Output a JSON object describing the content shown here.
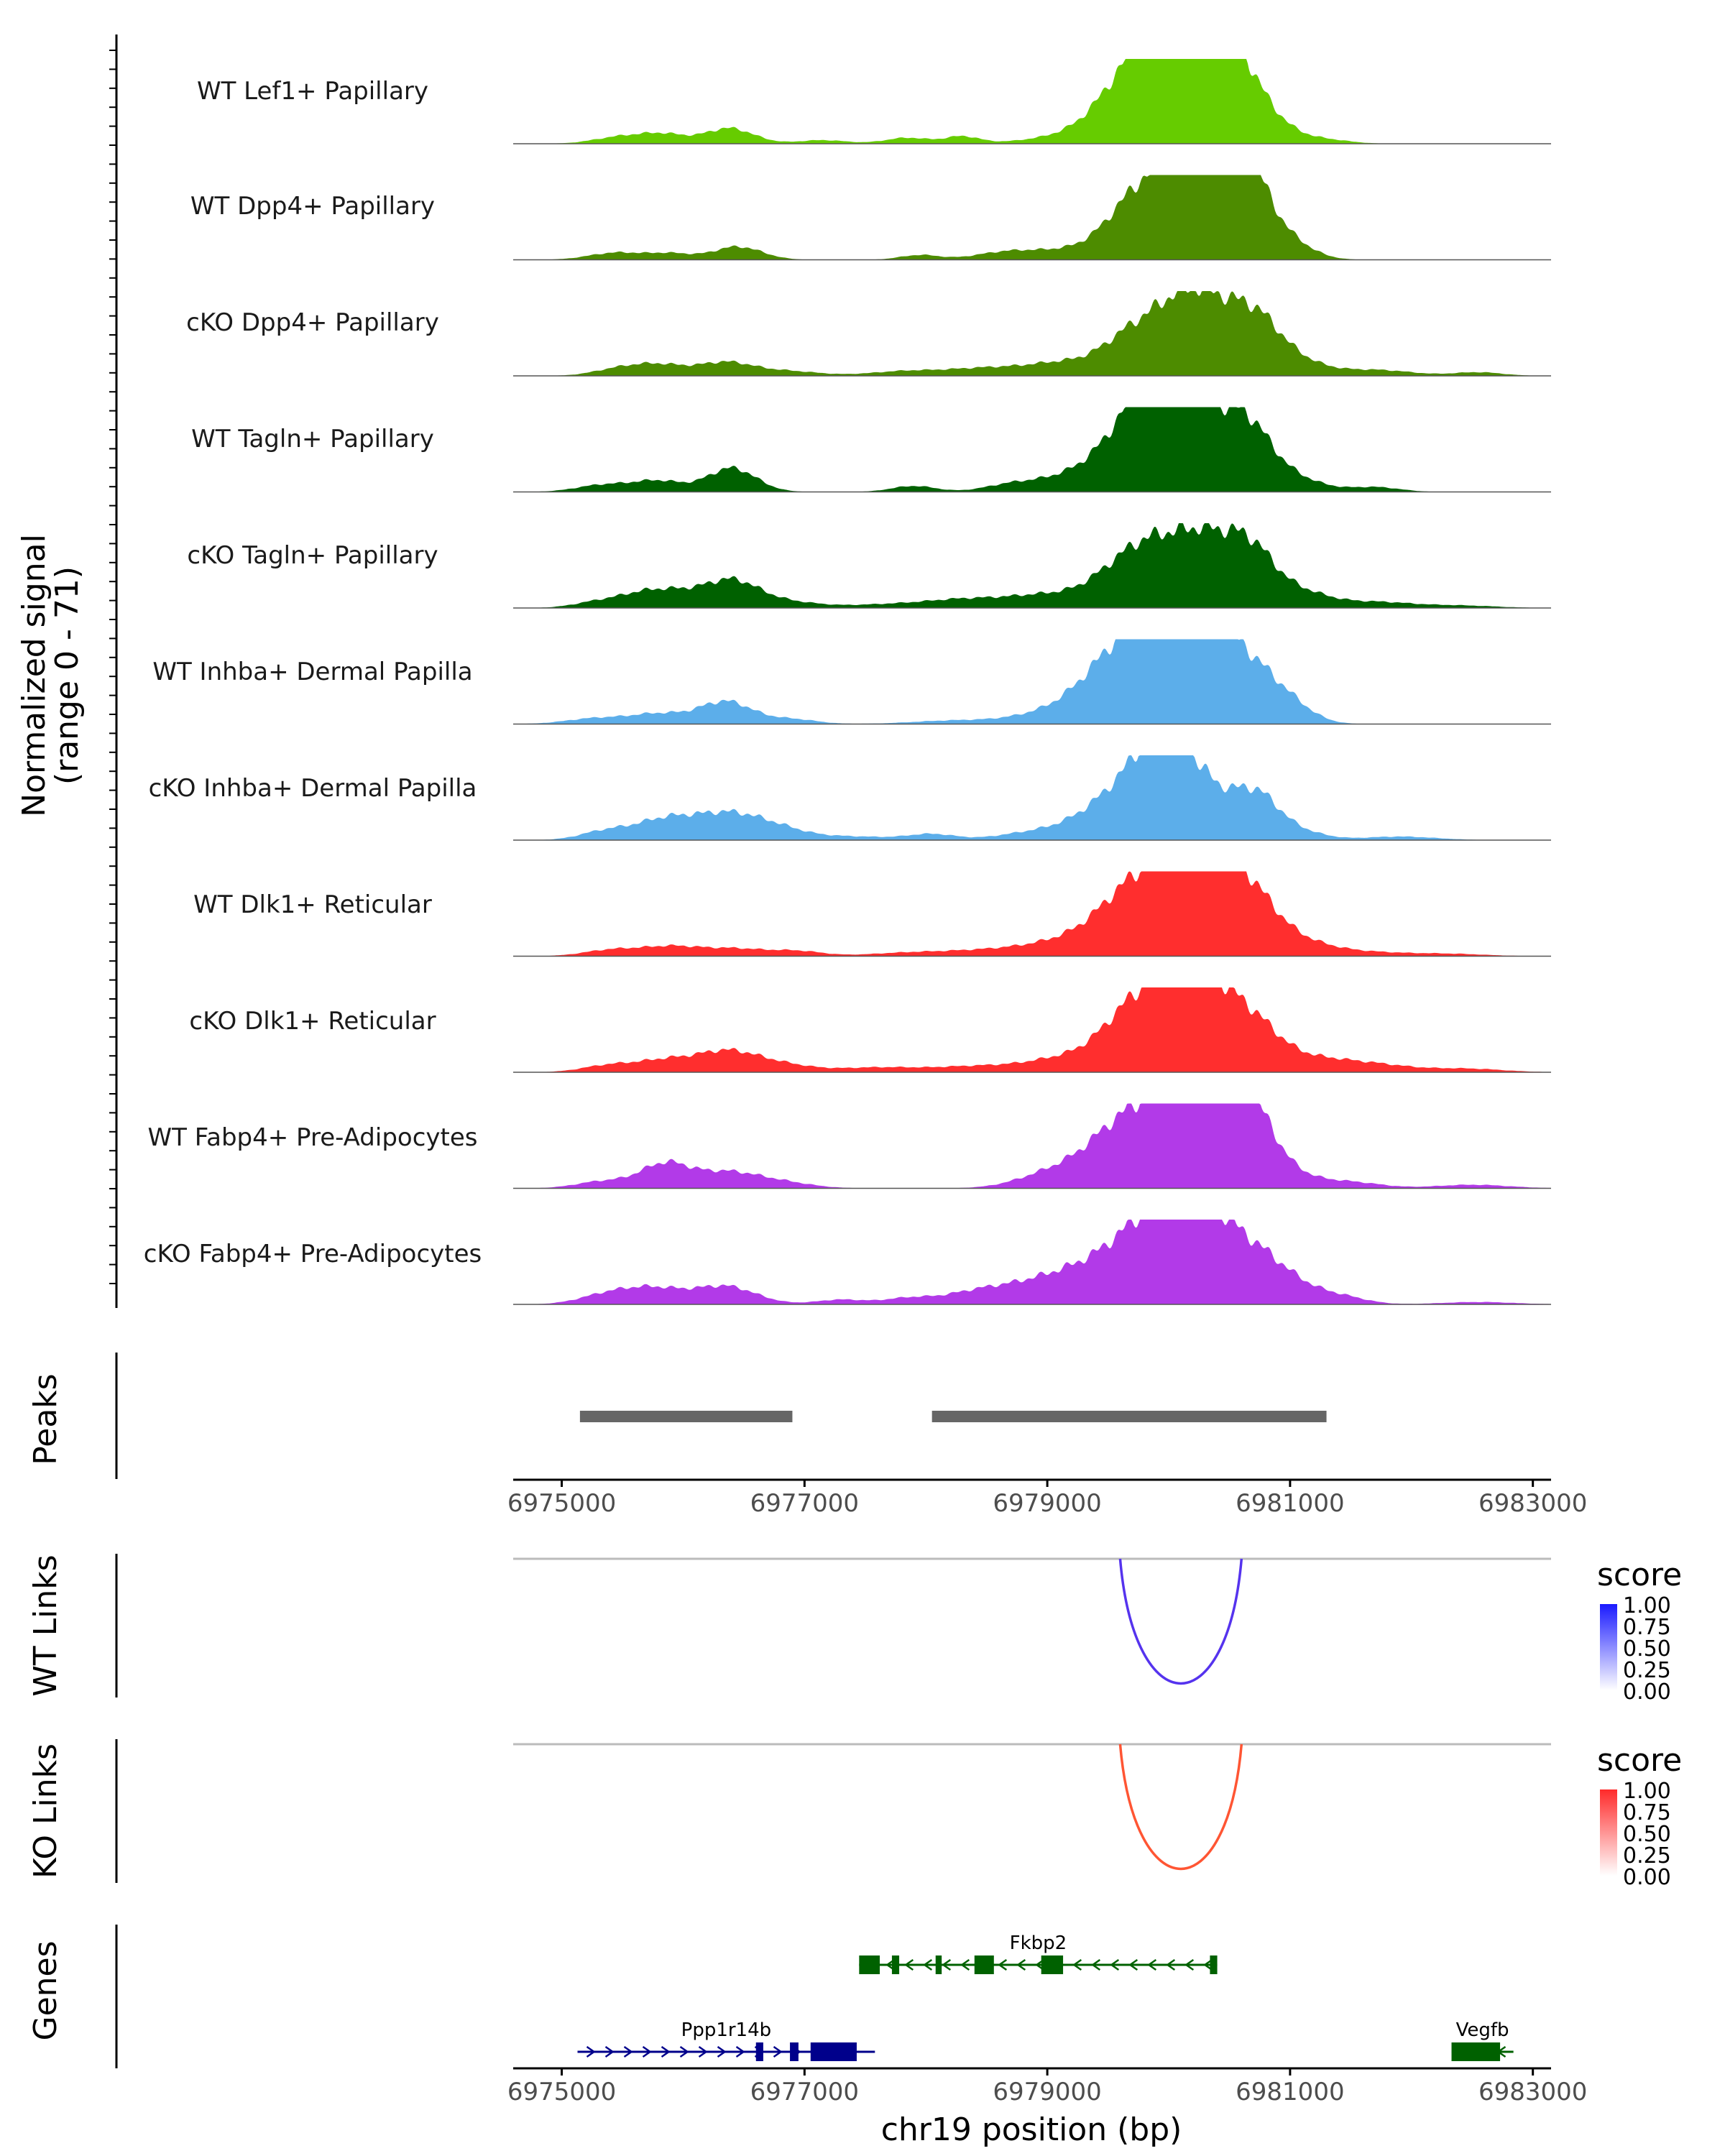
{
  "chart_data": {
    "type": "area",
    "title": "",
    "region": {
      "chrom": "chr19",
      "start": 6974600,
      "end": 6983150
    },
    "xlabel": "chr19 position (bp)",
    "x_ticks": [
      6975000,
      6977000,
      6979000,
      6981000,
      6983000
    ],
    "x_tick_labels": [
      "6975000",
      "6977000",
      "6979000",
      "6981000",
      "6983000"
    ],
    "signal_axis": {
      "label_line1": "Normalized signal",
      "label_line2": "(range 0 - 71)",
      "ylim": [
        0,
        71
      ]
    },
    "tracks": [
      {
        "name": "WT Lef1+ Papillary",
        "color": "#66cc00",
        "peaks": [
          [
            6975500,
            6,
            220
          ],
          [
            6975850,
            7,
            180
          ],
          [
            6976380,
            13,
            200
          ],
          [
            6977150,
            3,
            200
          ],
          [
            6977850,
            5,
            180
          ],
          [
            6978300,
            6,
            140
          ],
          [
            6979150,
            5,
            350
          ],
          [
            6979750,
            38,
            300
          ],
          [
            6980100,
            67,
            380
          ],
          [
            6980450,
            42,
            200
          ],
          [
            6980700,
            22,
            250
          ],
          [
            6981300,
            3,
            200
          ]
        ]
      },
      {
        "name": "WT Dpp4+ Papillary",
        "color": "#4d8c00",
        "peaks": [
          [
            6975450,
            6,
            220
          ],
          [
            6975900,
            5,
            180
          ],
          [
            6976450,
            11,
            200
          ],
          [
            6977950,
            4,
            160
          ],
          [
            6978650,
            6,
            250
          ],
          [
            6979200,
            8,
            300
          ],
          [
            6979650,
            28,
            220
          ],
          [
            6980000,
            62,
            250
          ],
          [
            6980350,
            50,
            200
          ],
          [
            6980650,
            58,
            160
          ],
          [
            6980900,
            22,
            220
          ]
        ]
      },
      {
        "name": "cKO Dpp4+ Papillary",
        "color": "#4d8c00",
        "peaks": [
          [
            6975450,
            5,
            200
          ],
          [
            6975800,
            9,
            220
          ],
          [
            6976350,
            11,
            220
          ],
          [
            6976850,
            4,
            260
          ],
          [
            6977850,
            4,
            300
          ],
          [
            6978500,
            6,
            300
          ],
          [
            6979150,
            11,
            300
          ],
          [
            6979650,
            24,
            220
          ],
          [
            6980050,
            49,
            250
          ],
          [
            6980350,
            38,
            220
          ],
          [
            6980700,
            40,
            200
          ],
          [
            6981000,
            14,
            250
          ],
          [
            6981700,
            5,
            300
          ],
          [
            6982550,
            3,
            200
          ]
        ]
      },
      {
        "name": "WT Tagln+ Papillary",
        "color": "#006100",
        "peaks": [
          [
            6975350,
            6,
            220
          ],
          [
            6975800,
            9,
            200
          ],
          [
            6976400,
            20,
            200
          ],
          [
            6977900,
            5,
            180
          ],
          [
            6978700,
            6,
            220
          ],
          [
            6979250,
            15,
            280
          ],
          [
            6979650,
            42,
            220
          ],
          [
            6979950,
            71,
            200
          ],
          [
            6980300,
            51,
            250
          ],
          [
            6980650,
            42,
            200
          ],
          [
            6981000,
            12,
            250
          ],
          [
            6981700,
            4,
            200
          ]
        ]
      },
      {
        "name": "cKO Tagln+ Papillary",
        "color": "#006100",
        "peaks": [
          [
            6975300,
            5,
            200
          ],
          [
            6975650,
            9,
            200
          ],
          [
            6975950,
            11,
            220
          ],
          [
            6976400,
            22,
            220
          ],
          [
            6976850,
            5,
            260
          ],
          [
            6977700,
            3,
            350
          ],
          [
            6978300,
            6,
            300
          ],
          [
            6979000,
            11,
            350
          ],
          [
            6979600,
            26,
            250
          ],
          [
            6979950,
            44,
            250
          ],
          [
            6980300,
            40,
            200
          ],
          [
            6980650,
            48,
            200
          ],
          [
            6981050,
            14,
            250
          ],
          [
            6981700,
            5,
            300
          ],
          [
            6982400,
            2,
            300
          ]
        ]
      },
      {
        "name": "WT Inhba+ Dermal Papilla",
        "color": "#5caeea",
        "peaks": [
          [
            6975300,
            5,
            250
          ],
          [
            6975800,
            8,
            220
          ],
          [
            6976350,
            19,
            220
          ],
          [
            6976900,
            4,
            200
          ],
          [
            6978250,
            3,
            350
          ],
          [
            6979000,
            8,
            300
          ],
          [
            6979500,
            36,
            280
          ],
          [
            6979900,
            56,
            300
          ],
          [
            6980200,
            66,
            280
          ],
          [
            6980650,
            40,
            250
          ],
          [
            6981000,
            11,
            200
          ]
        ]
      },
      {
        "name": "cKO Inhba+ Dermal Papilla",
        "color": "#5caeea",
        "peaks": [
          [
            6975350,
            7,
            200
          ],
          [
            6975850,
            17,
            250
          ],
          [
            6976350,
            19,
            250
          ],
          [
            6976750,
            10,
            250
          ],
          [
            6977400,
            3,
            300
          ],
          [
            6978050,
            5,
            200
          ],
          [
            6978800,
            5,
            250
          ],
          [
            6979250,
            11,
            250
          ],
          [
            6979650,
            39,
            250
          ],
          [
            6979950,
            61,
            200
          ],
          [
            6980250,
            40,
            200
          ],
          [
            6980700,
            40,
            200
          ],
          [
            6981100,
            6,
            200
          ],
          [
            6981900,
            3,
            300
          ]
        ]
      },
      {
        "name": "WT Dlk1+ Reticular",
        "color": "#ff2e2e",
        "peaks": [
          [
            6975400,
            5,
            220
          ],
          [
            6975900,
            8,
            250
          ],
          [
            6976450,
            6,
            250
          ],
          [
            6976950,
            4,
            200
          ],
          [
            6977900,
            3,
            350
          ],
          [
            6978600,
            5,
            350
          ],
          [
            6979150,
            10,
            300
          ],
          [
            6979650,
            40,
            280
          ],
          [
            6980050,
            57,
            280
          ],
          [
            6980350,
            42,
            200
          ],
          [
            6980650,
            44,
            220
          ],
          [
            6981000,
            14,
            300
          ],
          [
            6981650,
            3,
            300
          ],
          [
            6982300,
            2,
            300
          ]
        ]
      },
      {
        "name": "cKO Dlk1+ Reticular",
        "color": "#ff2e2e",
        "peaks": [
          [
            6975400,
            6,
            220
          ],
          [
            6975850,
            9,
            220
          ],
          [
            6976350,
            17,
            250
          ],
          [
            6976800,
            6,
            250
          ],
          [
            6977600,
            4,
            350
          ],
          [
            6978450,
            5,
            350
          ],
          [
            6979150,
            11,
            300
          ],
          [
            6979650,
            31,
            250
          ],
          [
            6980000,
            56,
            280
          ],
          [
            6980350,
            45,
            220
          ],
          [
            6980700,
            34,
            220
          ],
          [
            6981150,
            11,
            300
          ],
          [
            6981700,
            6,
            300
          ],
          [
            6982450,
            3,
            300
          ]
        ]
      },
      {
        "name": "WT Fabp4+ Pre-Adipocytes",
        "color": "#b23ae8",
        "peaks": [
          [
            6975350,
            6,
            220
          ],
          [
            6975850,
            20,
            200
          ],
          [
            6976350,
            13,
            250
          ],
          [
            6976800,
            5,
            250
          ],
          [
            6979100,
            15,
            300
          ],
          [
            6979550,
            32,
            250
          ],
          [
            6979950,
            58,
            280
          ],
          [
            6980300,
            62,
            220
          ],
          [
            6980650,
            60,
            200
          ],
          [
            6980950,
            12,
            250
          ],
          [
            6981500,
            5,
            250
          ],
          [
            6982500,
            3,
            300
          ]
        ]
      },
      {
        "name": "cKO Fabp4+ Pre-Adipocytes",
        "color": "#b23ae8",
        "peaks": [
          [
            6975350,
            7,
            220
          ],
          [
            6975750,
            13,
            250
          ],
          [
            6976350,
            15,
            250
          ],
          [
            6977300,
            4,
            200
          ],
          [
            6977850,
            5,
            200
          ],
          [
            6978350,
            7,
            250
          ],
          [
            6978750,
            11,
            300
          ],
          [
            6979200,
            19,
            300
          ],
          [
            6979650,
            28,
            300
          ],
          [
            6980000,
            60,
            300
          ],
          [
            6980350,
            43,
            220
          ],
          [
            6980700,
            30,
            220
          ],
          [
            6981000,
            16,
            250
          ],
          [
            6981450,
            5,
            200
          ],
          [
            6982550,
            2,
            300
          ]
        ]
      }
    ],
    "peaks_track": {
      "label": "Peaks",
      "ranges": [
        [
          6975150,
          6976900
        ],
        [
          6978050,
          6981300
        ]
      ],
      "color": "#666666"
    },
    "links": [
      {
        "label": "WT Links",
        "color": "#5533ee",
        "start": 6979600,
        "end": 6980600,
        "score": 0.8
      },
      {
        "label": "KO Links",
        "color": "#ff5533",
        "start": 6979600,
        "end": 6980600,
        "score": 0.8
      }
    ],
    "legends": [
      {
        "title": "score",
        "ticks": [
          "1.00",
          "0.75",
          "0.50",
          "0.25",
          "0.00"
        ],
        "color": "#1a1aff"
      },
      {
        "title": "score",
        "ticks": [
          "1.00",
          "0.75",
          "0.50",
          "0.25",
          "0.00"
        ],
        "color": "#ff2a2a"
      }
    ],
    "genes_track": {
      "label": "Genes",
      "genes": [
        {
          "name": "Fkbp2",
          "start": 6977450,
          "end": 6980400,
          "strand": "-",
          "row": 0,
          "color": "#006100",
          "exons": [
            [
              6977450,
              6977620
            ],
            [
              6977720,
              6977780
            ],
            [
              6978080,
              6978130
            ],
            [
              6978400,
              6978560
            ],
            [
              6978950,
              6979130
            ],
            [
              6980340,
              6980400
            ]
          ]
        },
        {
          "name": "Ppp1r14b",
          "start": 6975130,
          "end": 6977580,
          "strand": "+",
          "row": 1,
          "color": "#00008b",
          "exons": [
            [
              6976600,
              6976660
            ],
            [
              6976880,
              6976950
            ],
            [
              6977050,
              6977430
            ]
          ]
        },
        {
          "name": "Vegfb",
          "start": 6982330,
          "end": 6982840,
          "strand": "-",
          "row": 1,
          "color": "#006100",
          "exons": [
            [
              6982330,
              6982730
            ]
          ]
        }
      ]
    }
  }
}
